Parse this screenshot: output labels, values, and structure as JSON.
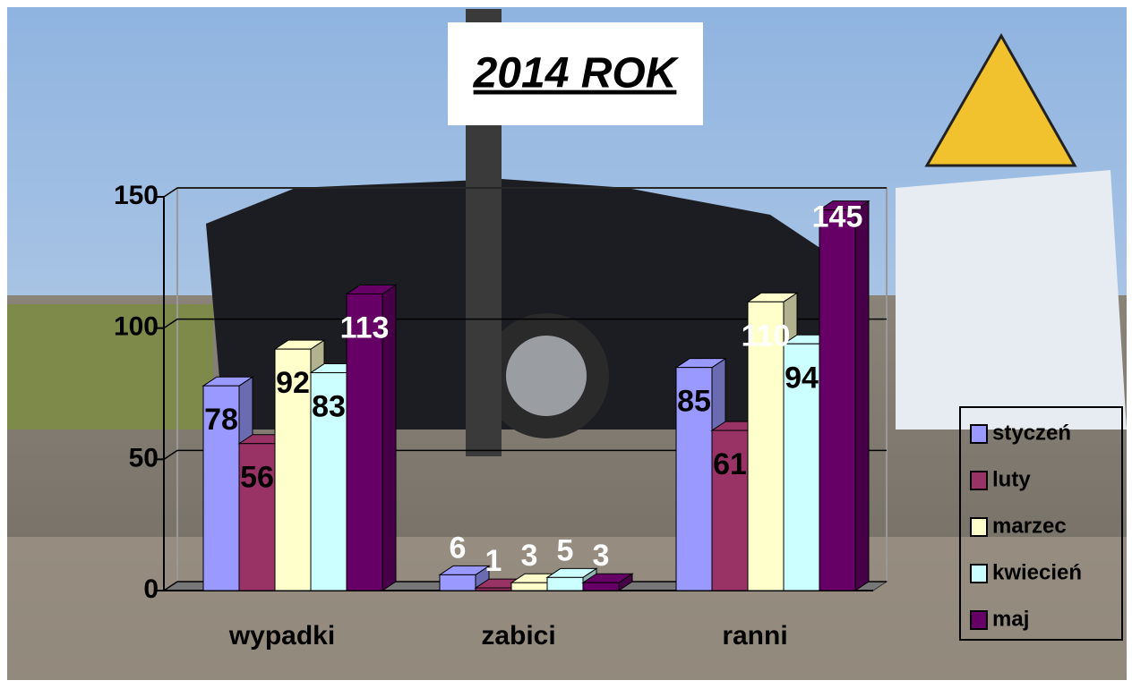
{
  "chart_data": {
    "type": "bar3d",
    "title": "2014 ROK",
    "categories": [
      "wypadki",
      "zabici",
      "ranni"
    ],
    "series": [
      {
        "name": "styczeń",
        "color": "#9999ff",
        "values": [
          78,
          6,
          85
        ]
      },
      {
        "name": "luty",
        "color": "#993366",
        "values": [
          56,
          1,
          61
        ]
      },
      {
        "name": "marzec",
        "color": "#ffffcc",
        "values": [
          92,
          3,
          110
        ]
      },
      {
        "name": "kwiecień",
        "color": "#ccffff",
        "values": [
          83,
          5,
          94
        ]
      },
      {
        "name": "maj",
        "color": "#660066",
        "values": [
          113,
          3,
          145
        ]
      }
    ],
    "ylim": [
      0,
      150
    ],
    "yticks": [
      0,
      50,
      100,
      150
    ],
    "grid": true,
    "legend": "right"
  }
}
